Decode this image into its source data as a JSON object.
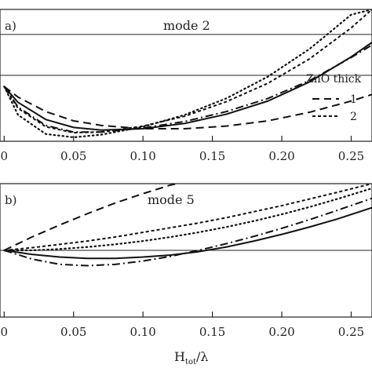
{
  "chart_data": [
    {
      "type": "line",
      "panel_label": "a)",
      "annotation": "mode 2",
      "xlim": [
        -0.003,
        0.265
      ],
      "ylim": [
        -1.0,
        1.0
      ],
      "reference_lines": [
        0.62,
        0.0
      ],
      "x_ticks": [
        0,
        0.05,
        0.1,
        0.15,
        0.2,
        0.25
      ],
      "x_tick_labels": [
        "0",
        "0.05",
        "0.10",
        "0.15",
        "0.20",
        "0.25"
      ],
      "legend": {
        "title": "ZnO thick",
        "placement": "right",
        "entries": [
          {
            "label": "1",
            "style": "dash"
          },
          {
            "label": "2",
            "style": "short-dash"
          }
        ]
      },
      "series": [
        {
          "style": "solid",
          "x": [
            0,
            0.01,
            0.03,
            0.05,
            0.07,
            0.1,
            0.13,
            0.16,
            0.19,
            0.22,
            0.25,
            0.265
          ],
          "y": [
            -0.17,
            -0.41,
            -0.67,
            -0.79,
            -0.83,
            -0.81,
            -0.73,
            -0.59,
            -0.39,
            -0.1,
            0.28,
            0.5
          ]
        },
        {
          "style": "dash",
          "x": [
            0,
            0.01,
            0.03,
            0.05,
            0.07,
            0.1,
            0.13,
            0.16,
            0.19,
            0.22,
            0.25,
            0.265
          ],
          "y": [
            -0.17,
            -0.33,
            -0.55,
            -0.69,
            -0.76,
            -0.81,
            -0.81,
            -0.77,
            -0.69,
            -0.56,
            -0.39,
            -0.29
          ]
        },
        {
          "style": "dash-dot",
          "x": [
            0,
            0.01,
            0.03,
            0.05,
            0.07,
            0.1,
            0.13,
            0.16,
            0.19,
            0.22,
            0.25,
            0.265
          ],
          "y": [
            -0.17,
            -0.48,
            -0.76,
            -0.86,
            -0.86,
            -0.8,
            -0.7,
            -0.55,
            -0.35,
            -0.08,
            0.27,
            0.46
          ]
        },
        {
          "style": "short-dash",
          "x": [
            0,
            0.01,
            0.03,
            0.05,
            0.07,
            0.1,
            0.13,
            0.16,
            0.19,
            0.22,
            0.25,
            0.265
          ],
          "y": [
            -0.17,
            -0.5,
            -0.78,
            -0.87,
            -0.86,
            -0.77,
            -0.62,
            -0.4,
            -0.12,
            0.25,
            0.72,
            1.0
          ]
        },
        {
          "style": "dot",
          "x": [
            0,
            0.01,
            0.03,
            0.05,
            0.07,
            0.1,
            0.13,
            0.16,
            0.19,
            0.22,
            0.25,
            0.265
          ],
          "y": [
            -0.17,
            -0.6,
            -0.89,
            -0.94,
            -0.9,
            -0.78,
            -0.6,
            -0.35,
            -0.02,
            0.4,
            0.92,
            1.0
          ]
        }
      ]
    },
    {
      "type": "line",
      "panel_label": "b)",
      "annotation": "mode 5",
      "xlim": [
        -0.003,
        0.265
      ],
      "ylim": [
        -1.0,
        1.0
      ],
      "reference_lines": [
        0.0
      ],
      "x_ticks": [
        0,
        0.05,
        0.1,
        0.15,
        0.2,
        0.25
      ],
      "x_tick_labels": [
        "0",
        "0.05",
        "0.10",
        "0.15",
        "0.20",
        "0.25"
      ],
      "xlabel": "H",
      "xlabel_sub": "tot",
      "xlabel_tail": "/λ",
      "series": [
        {
          "style": "solid",
          "x": [
            0,
            0.02,
            0.04,
            0.06,
            0.08,
            0.1,
            0.12,
            0.14,
            0.16,
            0.18,
            0.2,
            0.22,
            0.24,
            0.265
          ],
          "y": [
            0,
            -0.06,
            -0.1,
            -0.12,
            -0.12,
            -0.1,
            -0.07,
            -0.02,
            0.05,
            0.14,
            0.24,
            0.35,
            0.47,
            0.64
          ]
        },
        {
          "style": "dash",
          "x": [
            0,
            0.02,
            0.04,
            0.06,
            0.08,
            0.1,
            0.12,
            0.125
          ],
          "y": [
            0,
            0.2,
            0.38,
            0.55,
            0.71,
            0.85,
            0.98,
            1.0
          ]
        },
        {
          "style": "dash-dot",
          "x": [
            0,
            0.02,
            0.04,
            0.06,
            0.08,
            0.1,
            0.12,
            0.14,
            0.16,
            0.18,
            0.2,
            0.22,
            0.24,
            0.265
          ],
          "y": [
            0,
            -0.13,
            -0.21,
            -0.23,
            -0.21,
            -0.16,
            -0.09,
            0.0,
            0.1,
            0.21,
            0.33,
            0.46,
            0.6,
            0.78
          ]
        },
        {
          "style": "short-dash",
          "x": [
            0,
            0.02,
            0.04,
            0.06,
            0.08,
            0.1,
            0.12,
            0.14,
            0.16,
            0.18,
            0.2,
            0.22,
            0.24,
            0.265
          ],
          "y": [
            0,
            0.04,
            0.09,
            0.14,
            0.2,
            0.27,
            0.34,
            0.41,
            0.49,
            0.58,
            0.67,
            0.77,
            0.87,
            1.0
          ]
        },
        {
          "style": "dot",
          "x": [
            0,
            0.02,
            0.04,
            0.06,
            0.08,
            0.1,
            0.12,
            0.14,
            0.16,
            0.18,
            0.2,
            0.22,
            0.24,
            0.265
          ],
          "y": [
            0,
            0.0,
            0.02,
            0.05,
            0.09,
            0.14,
            0.2,
            0.27,
            0.35,
            0.44,
            0.54,
            0.65,
            0.77,
            0.93
          ]
        }
      ]
    }
  ]
}
